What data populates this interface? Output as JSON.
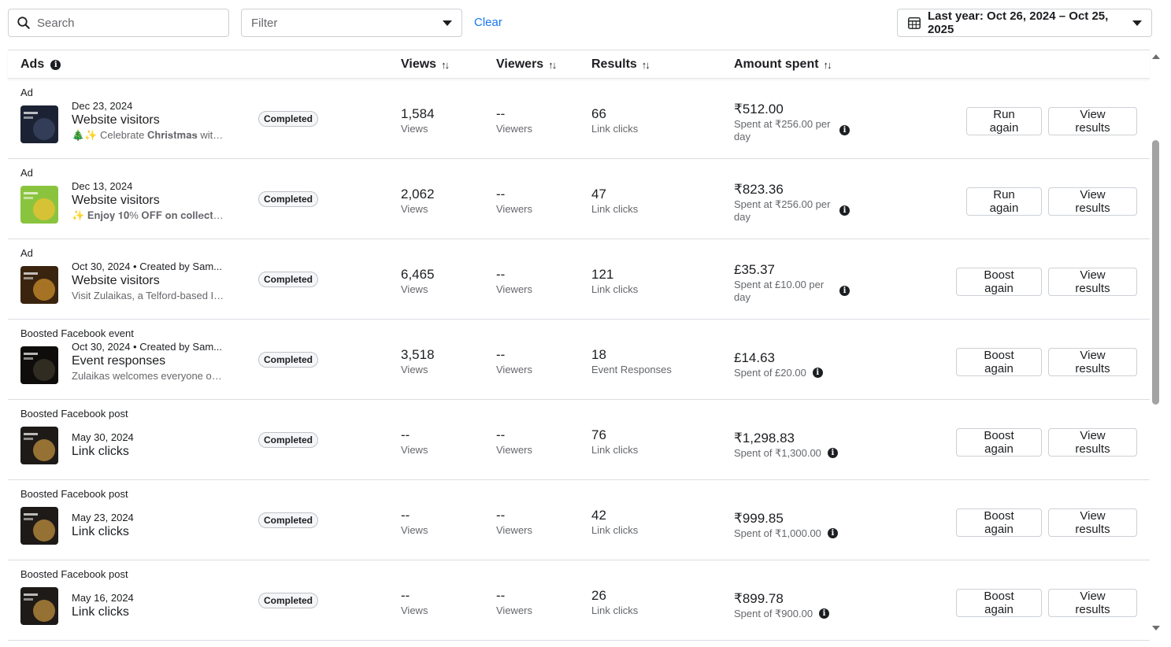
{
  "toolbar": {
    "search_placeholder": "Search",
    "filter_placeholder": "Filter",
    "clear_label": "Clear",
    "date_range": "Last year: Oct 26, 2024 – Oct 25, 2025"
  },
  "table": {
    "headers": {
      "ads": "Ads",
      "views": "Views",
      "viewers": "Viewers",
      "results": "Results",
      "amount": "Amount spent",
      "sort_icon": "↑↓"
    },
    "rows": [
      {
        "type": "Ad",
        "date": "Dec 23, 2024",
        "objective": "Website visitors",
        "description": "🎄✨ Celebrate 𝐂𝐡𝐫𝐢𝐬𝐭𝐦𝐚𝐬 with ...",
        "status": "Completed",
        "views_value": "1,584",
        "views_label": "Views",
        "viewers_value": "--",
        "viewers_label": "Viewers",
        "results_value": "66",
        "results_label": "Link clicks",
        "amount_value": "₹512.00",
        "amount_label": "Spent at ₹256.00 per day",
        "primary_action": "Run again",
        "secondary_action": "View results",
        "thumb_colors": [
          "#1b2233",
          "#3a4560"
        ]
      },
      {
        "type": "Ad",
        "date": "Dec 13, 2024",
        "objective": "Website visitors",
        "description": "✨ 𝐄𝐧𝐣𝐨𝐲 𝟏𝟎% 𝐎𝐅𝐅 𝐨𝐧 𝐜𝐨𝐥𝐥𝐞𝐜𝐭𝐢𝐨𝐧...",
        "status": "Completed",
        "views_value": "2,062",
        "views_label": "Views",
        "viewers_value": "--",
        "viewers_label": "Viewers",
        "results_value": "47",
        "results_label": "Link clicks",
        "amount_value": "₹823.36",
        "amount_label": "Spent at ₹256.00 per day",
        "primary_action": "Run again",
        "secondary_action": "View results",
        "thumb_colors": [
          "#8ac43f",
          "#e8c233"
        ]
      },
      {
        "type": "Ad",
        "date": "Oct 30, 2024 • Created by Sam...",
        "objective": "Website visitors",
        "description": "Visit Zulaikas, a Telford-based In...",
        "status": "Completed",
        "views_value": "6,465",
        "views_label": "Views",
        "viewers_value": "--",
        "viewers_label": "Viewers",
        "results_value": "121",
        "results_label": "Link clicks",
        "amount_value": "£35.37",
        "amount_label": "Spent at £10.00 per day",
        "primary_action": "Boost again",
        "secondary_action": "View results",
        "thumb_colors": [
          "#3a2410",
          "#c2872a"
        ]
      },
      {
        "type": "Boosted Facebook event",
        "date": "Oct 30, 2024 • Created by Sam...",
        "objective": "Event responses",
        "description": "Zulaikas welcomes everyone on ...",
        "status": "Completed",
        "views_value": "3,518",
        "views_label": "Views",
        "viewers_value": "--",
        "viewers_label": "Viewers",
        "results_value": "18",
        "results_label": "Event Responses",
        "amount_value": "£14.63",
        "amount_label": "Spent of £20.00",
        "primary_action": "Boost again",
        "secondary_action": "View results",
        "thumb_colors": [
          "#0e0d0b",
          "#3a3428"
        ]
      },
      {
        "type": "Boosted Facebook post",
        "date": "May 30, 2024",
        "objective": "Link clicks",
        "description": "",
        "status": "Completed",
        "views_value": "--",
        "views_label": "Views",
        "viewers_value": "--",
        "viewers_label": "Viewers",
        "results_value": "76",
        "results_label": "Link clicks",
        "amount_value": "₹1,298.83",
        "amount_label": "Spent of ₹1,300.00",
        "primary_action": "Boost again",
        "secondary_action": "View results",
        "thumb_colors": [
          "#1d1a17",
          "#b5873c"
        ]
      },
      {
        "type": "Boosted Facebook post",
        "date": "May 23, 2024",
        "objective": "Link clicks",
        "description": "",
        "status": "Completed",
        "views_value": "--",
        "views_label": "Views",
        "viewers_value": "--",
        "viewers_label": "Viewers",
        "results_value": "42",
        "results_label": "Link clicks",
        "amount_value": "₹999.85",
        "amount_label": "Spent of ₹1,000.00",
        "primary_action": "Boost again",
        "secondary_action": "View results",
        "thumb_colors": [
          "#1d1a17",
          "#b5873c"
        ]
      },
      {
        "type": "Boosted Facebook post",
        "date": "May 16, 2024",
        "objective": "Link clicks",
        "description": "",
        "status": "Completed",
        "views_value": "--",
        "views_label": "Views",
        "viewers_value": "--",
        "viewers_label": "Viewers",
        "results_value": "26",
        "results_label": "Link clicks",
        "amount_value": "₹899.78",
        "amount_label": "Spent of ₹900.00",
        "primary_action": "Boost again",
        "secondary_action": "View results",
        "thumb_colors": [
          "#1d1a17",
          "#b5873c"
        ]
      }
    ]
  }
}
